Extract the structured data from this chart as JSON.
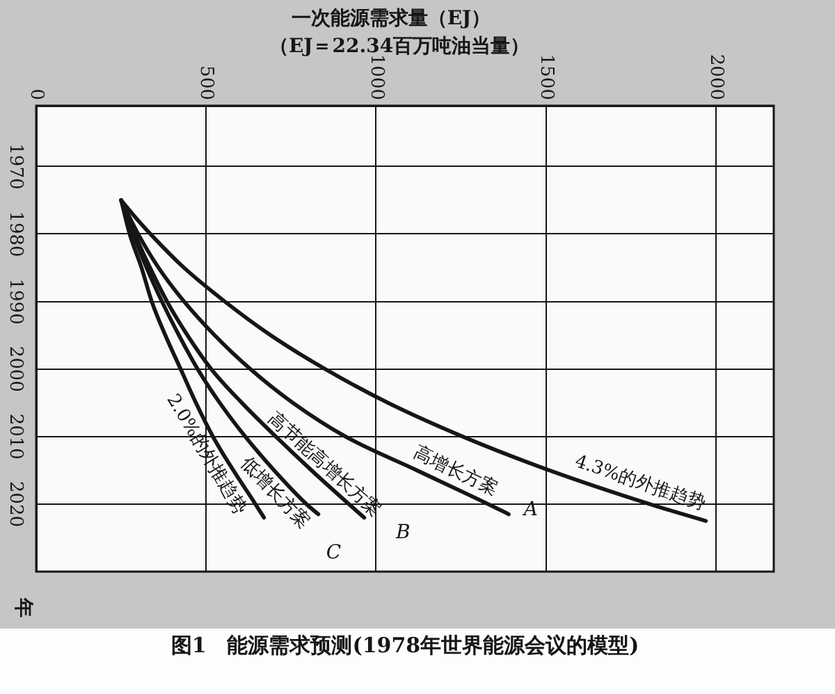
{
  "chart_data": {
    "type": "line",
    "title": "图1　能源需求预测(1978年世界能源会议的模型)",
    "xlabel": "一次能源需求量（EJ）",
    "ylabel": "年",
    "xlim": [
      0,
      2170
    ],
    "xticks": [
      0,
      500,
      1000,
      1500,
      2000
    ],
    "ylim": [
      2030,
      1961
    ],
    "yticks": [
      1970,
      1980,
      1990,
      2000,
      2010,
      2020
    ],
    "grid": true,
    "legend": false,
    "marker": "none",
    "series": [
      {
        "name": "4.3%的外推趋势",
        "color": "#161616",
        "x": [
          250,
          300,
          355,
          435,
          555,
          690,
          850,
          1035,
          1255,
          1510,
          1805,
          1970
        ],
        "values": [
          1975,
          1978,
          1981,
          1985,
          1990,
          1995,
          2000,
          2005,
          2010,
          2015,
          2020,
          2022.5
        ]
      },
      {
        "name": "高增长方案",
        "color": "#161616",
        "x": [
          250,
          300,
          360,
          435,
          525,
          630,
          755,
          910,
          1120,
          1330,
          1390
        ],
        "values": [
          1975,
          1980,
          1985,
          1990,
          1995,
          2000,
          2005,
          2010,
          2015,
          2020,
          2021.5
        ]
      },
      {
        "name": "高节能高增长方案",
        "color": "#161616",
        "x": [
          250,
          290,
          335,
          385,
          445,
          515,
          605,
          705,
          810,
          920,
          965
        ],
        "values": [
          1975,
          1980,
          1985,
          1990,
          1995,
          2000,
          2005,
          2010,
          2015,
          2020,
          2022
        ]
      },
      {
        "name": "低增长方案",
        "color": "#161616",
        "x": [
          250,
          285,
          325,
          370,
          420,
          475,
          540,
          615,
          700,
          795,
          830
        ],
        "values": [
          1975,
          1980,
          1985,
          1990,
          1995,
          2000,
          2005,
          2010,
          2015,
          2020,
          2021.5
        ]
      },
      {
        "name": "2.0%的外推趋势",
        "color": "#161616",
        "x": [
          250,
          275,
          310,
          340,
          380,
          425,
          470,
          520,
          580,
          645,
          670
        ],
        "values": [
          1975,
          1980,
          1985,
          1990,
          1995,
          2000,
          2005,
          2010,
          2015,
          2020,
          2022
        ]
      }
    ],
    "annotations": [
      "（EJ＝22.34百万吨油当量）",
      {
        "text": "A",
        "x": 1390,
        "y": 2021.5
      },
      {
        "text": "B",
        "x": 965,
        "y": 2022
      },
      {
        "text": "C",
        "x": 830,
        "y": 2021.5
      }
    ]
  }
}
